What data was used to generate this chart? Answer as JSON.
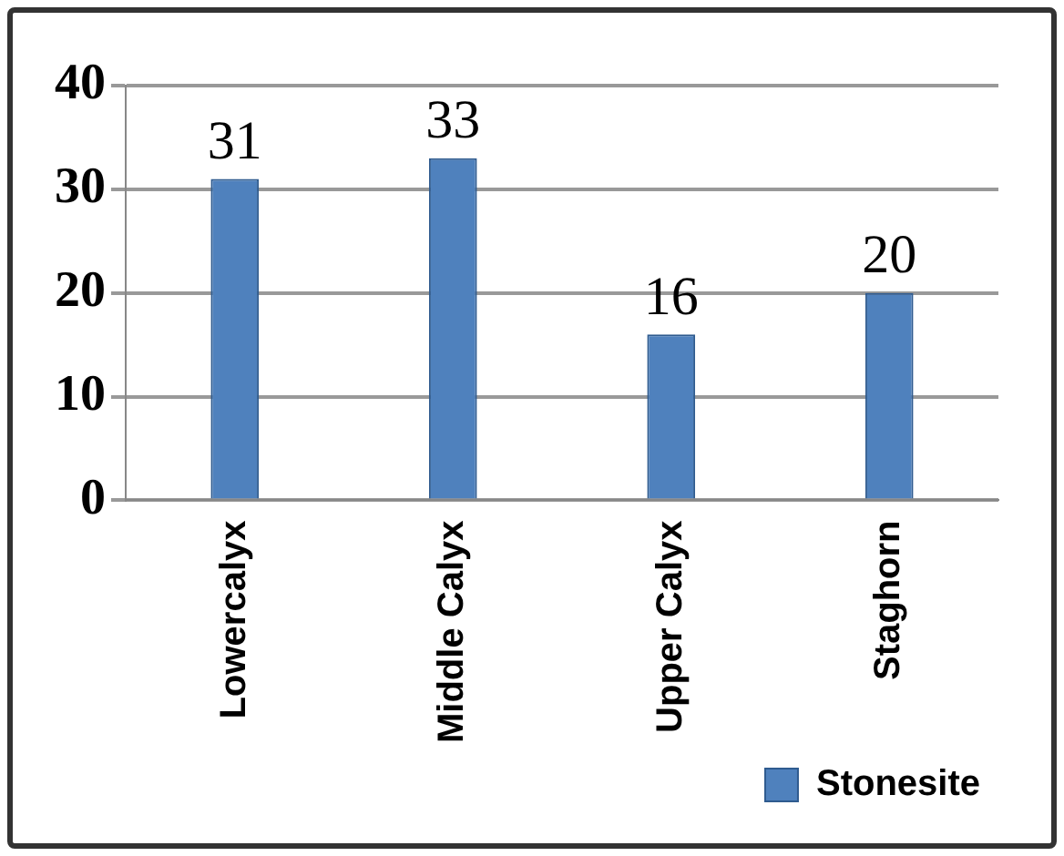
{
  "chart_data": {
    "type": "bar",
    "categories": [
      "Lowercalyx",
      "Middle Calyx",
      "Upper Calyx",
      "Staghorn"
    ],
    "series": [
      {
        "name": "Stonesite",
        "color": "#4f81bd",
        "values": [
          31,
          33,
          16,
          20
        ]
      }
    ],
    "ylim": [
      0,
      40
    ],
    "yticks": [
      0,
      10,
      20,
      30,
      40
    ],
    "grid": "y",
    "data_labels": true,
    "legend": "bottom right"
  }
}
